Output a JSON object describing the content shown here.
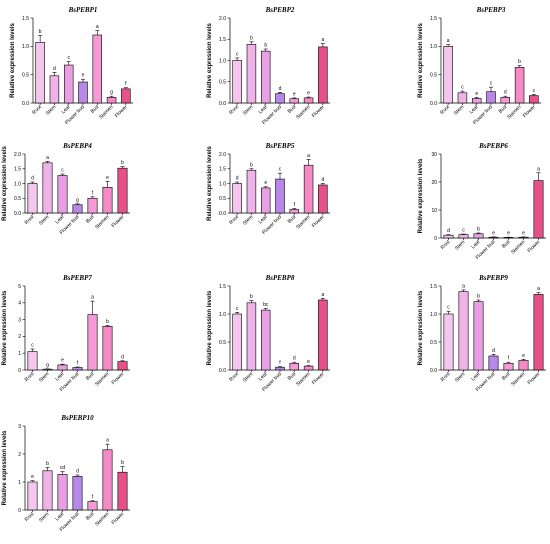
{
  "chart_data": [
    {
      "type": "bar",
      "title": "BsPEBP1",
      "ylabel": "Relative expression levels",
      "categories": [
        "Root",
        "Stem",
        "Leaf",
        "Flower bud",
        "Bud",
        "Stamen",
        "Flower"
      ],
      "values": [
        1.07,
        0.48,
        0.67,
        0.37,
        1.2,
        0.1,
        0.25
      ],
      "errors": [
        0.12,
        0.06,
        0.06,
        0.05,
        0.08,
        0.02,
        0.02
      ],
      "significance": [
        "b",
        "d",
        "c",
        "e",
        "a",
        "g",
        "f"
      ],
      "colors": [
        "#f4c6ee",
        "#f0b3e8",
        "#e9a0e2",
        "#b888e8",
        "#f59ad6",
        "#f58bc6",
        "#e8508a"
      ],
      "ylim": [
        0,
        1.5
      ],
      "yticks": [
        0.0,
        0.5,
        1.0,
        1.5
      ],
      "ytick_labels": [
        "0.0",
        "0.5",
        "1.0",
        "1.5"
      ]
    },
    {
      "type": "bar",
      "title": "BsPEBP2",
      "ylabel": "Relative expression levels",
      "categories": [
        "Root",
        "Stem",
        "Leaf",
        "Flower bud",
        "Bud",
        "Stamen",
        "Flower"
      ],
      "values": [
        1.0,
        1.38,
        1.22,
        0.22,
        0.1,
        0.12,
        1.32
      ],
      "errors": [
        0.06,
        0.06,
        0.05,
        0.03,
        0.02,
        0.02,
        0.08
      ],
      "significance": [
        "c",
        "b",
        "b",
        "d",
        "e",
        "e",
        "a"
      ],
      "colors": [
        "#f4c6ee",
        "#f0b3e8",
        "#e9a0e2",
        "#b888e8",
        "#f59ad6",
        "#f58bc6",
        "#e8508a"
      ],
      "ylim": [
        0,
        2.0
      ],
      "yticks": [
        0.0,
        0.5,
        1.0,
        1.5,
        2.0
      ],
      "ytick_labels": [
        "0.0",
        "0.5",
        "1.0",
        "1.5",
        "2.0"
      ]
    },
    {
      "type": "bar",
      "title": "BsPEBP3",
      "ylabel": "Relative expression levels",
      "categories": [
        "Root",
        "Stem",
        "Leaf",
        "Flower bud",
        "Bud",
        "Stamen",
        "Flower"
      ],
      "values": [
        1.0,
        0.18,
        0.08,
        0.2,
        0.1,
        0.63,
        0.13
      ],
      "errors": [
        0.03,
        0.03,
        0.02,
        0.08,
        0.02,
        0.03,
        0.02
      ],
      "significance": [
        "a",
        "c",
        "e",
        "c",
        "d",
        "b",
        "c"
      ],
      "colors": [
        "#f4c6ee",
        "#f0b3e8",
        "#e9a0e2",
        "#b888e8",
        "#f59ad6",
        "#f58bc6",
        "#e8508a"
      ],
      "ylim": [
        0,
        1.5
      ],
      "yticks": [
        0.0,
        0.5,
        1.0,
        1.5
      ],
      "ytick_labels": [
        "0.0",
        "0.5",
        "1.0",
        "1.5"
      ]
    },
    {
      "type": "bar",
      "title": "BsPEBP4",
      "ylabel": "Relative expression levels",
      "categories": [
        "Root",
        "Stem",
        "Leaf",
        "Flower bud",
        "Bud",
        "Stamen",
        "Flower"
      ],
      "values": [
        1.0,
        1.7,
        1.27,
        0.28,
        0.5,
        0.87,
        1.52
      ],
      "errors": [
        0.05,
        0.05,
        0.05,
        0.03,
        0.05,
        0.2,
        0.05
      ],
      "significance": [
        "d",
        "a",
        "c",
        "g",
        "f",
        "e",
        "b"
      ],
      "colors": [
        "#f4c6ee",
        "#f0b3e8",
        "#e9a0e2",
        "#b888e8",
        "#f59ad6",
        "#f58bc6",
        "#e8508a"
      ],
      "ylim": [
        0,
        2.0
      ],
      "yticks": [
        0.0,
        0.5,
        1.0,
        1.5,
        2.0
      ],
      "ytick_labels": [
        "0.0",
        "0.5",
        "1.0",
        "1.5",
        "2.0"
      ]
    },
    {
      "type": "bar",
      "title": "BsPEBP5",
      "ylabel": "Relative expression levels",
      "categories": [
        "Root",
        "Stem",
        "Leaf",
        "Flower bud",
        "Bud",
        "Stamen",
        "Flower"
      ],
      "values": [
        1.0,
        1.45,
        0.85,
        1.15,
        0.12,
        1.62,
        0.95
      ],
      "errors": [
        0.05,
        0.05,
        0.04,
        0.2,
        0.03,
        0.2,
        0.05
      ],
      "significance": [
        "d",
        "b",
        "e",
        "c",
        "f",
        "a",
        "d"
      ],
      "colors": [
        "#f4c6ee",
        "#f0b3e8",
        "#e9a0e2",
        "#b888e8",
        "#f59ad6",
        "#f58bc6",
        "#e8508a"
      ],
      "ylim": [
        0,
        2.0
      ],
      "yticks": [
        0.0,
        0.5,
        1.0,
        1.5,
        2.0
      ],
      "ytick_labels": [
        "0.0",
        "0.5",
        "1.0",
        "1.5",
        "2.0"
      ]
    },
    {
      "type": "bar",
      "title": "BsPEBP6",
      "ylabel": "Relative expression levels",
      "categories": [
        "Root",
        "Stem",
        "Leaf",
        "Flower bud",
        "Bud",
        "Stamen",
        "Flower"
      ],
      "values": [
        1.0,
        1.2,
        1.5,
        0.3,
        0.2,
        0.3,
        20.5
      ],
      "errors": [
        0.2,
        0.2,
        0.3,
        0.1,
        0.1,
        0.1,
        2.8
      ],
      "significance": [
        "d",
        "c",
        "b",
        "e",
        "e",
        "e",
        "a"
      ],
      "colors": [
        "#f4c6ee",
        "#f0b3e8",
        "#e9a0e2",
        "#b888e8",
        "#f59ad6",
        "#f58bc6",
        "#e8508a"
      ],
      "ylim": [
        0,
        30
      ],
      "yticks": [
        0,
        10,
        20,
        30
      ],
      "ytick_labels": [
        "0",
        "10",
        "20",
        "30"
      ]
    },
    {
      "type": "bar",
      "title": "BsPEBP7",
      "ylabel": "Relative expression levels",
      "categories": [
        "Root",
        "Stem",
        "Leaf",
        "Flower bud",
        "Bud",
        "Stamen",
        "Flower"
      ],
      "values": [
        1.1,
        0.05,
        0.3,
        0.15,
        3.3,
        2.6,
        0.5
      ],
      "errors": [
        0.15,
        0.02,
        0.05,
        0.03,
        0.8,
        0.05,
        0.05
      ],
      "significance": [
        "c",
        "g",
        "e",
        "f",
        "a",
        "b",
        "d"
      ],
      "colors": [
        "#f4c6ee",
        "#f0b3e8",
        "#e9a0e2",
        "#b888e8",
        "#f59ad6",
        "#f58bc6",
        "#e8508a"
      ],
      "ylim": [
        0,
        5
      ],
      "yticks": [
        0,
        1,
        2,
        3,
        4,
        5
      ],
      "ytick_labels": [
        "0",
        "1",
        "2",
        "3",
        "4",
        "5"
      ]
    },
    {
      "type": "bar",
      "title": "BsPEBP8",
      "ylabel": "Relative expression levels",
      "categories": [
        "Root",
        "Stem",
        "Leaf",
        "Flower bud",
        "Bud",
        "Stamen",
        "Flower"
      ],
      "values": [
        1.0,
        1.2,
        1.07,
        0.05,
        0.12,
        0.07,
        1.25
      ],
      "errors": [
        0.03,
        0.04,
        0.03,
        0.01,
        0.02,
        0.01,
        0.03
      ],
      "significance": [
        "c",
        "b",
        "bc",
        "f",
        "d",
        "e",
        "a"
      ],
      "colors": [
        "#f4c6ee",
        "#f0b3e8",
        "#e9a0e2",
        "#b888e8",
        "#f59ad6",
        "#f58bc6",
        "#e8508a"
      ],
      "ylim": [
        0,
        1.5
      ],
      "yticks": [
        0.0,
        0.5,
        1.0,
        1.5
      ],
      "ytick_labels": [
        "0.0",
        "0.5",
        "1.0",
        "1.5"
      ]
    },
    {
      "type": "bar",
      "title": "BsPEBP9",
      "ylabel": "Relative expression levels",
      "categories": [
        "Root",
        "Stem",
        "Leaf",
        "Flower bud",
        "Bud",
        "Stamen",
        "Flower"
      ],
      "values": [
        1.0,
        1.4,
        1.22,
        0.25,
        0.12,
        0.17,
        1.35
      ],
      "errors": [
        0.05,
        0.03,
        0.03,
        0.03,
        0.02,
        0.02,
        0.03
      ],
      "significance": [
        "c",
        "a",
        "b",
        "d",
        "f",
        "e",
        "a"
      ],
      "colors": [
        "#f4c6ee",
        "#f0b3e8",
        "#e9a0e2",
        "#b888e8",
        "#f59ad6",
        "#f58bc6",
        "#e8508a"
      ],
      "ylim": [
        0,
        1.5
      ],
      "yticks": [
        0.0,
        0.5,
        1.0,
        1.5
      ],
      "ytick_labels": [
        "0.0",
        "0.5",
        "1.0",
        "1.5"
      ]
    },
    {
      "type": "bar",
      "title": "BsPEBP10",
      "ylabel": "Relative expression levels",
      "categories": [
        "Root",
        "Stem",
        "Leaf",
        "Flower bud",
        "Bud",
        "Stamen",
        "Flower"
      ],
      "values": [
        1.0,
        1.4,
        1.27,
        1.2,
        0.3,
        2.15,
        1.35
      ],
      "errors": [
        0.05,
        0.12,
        0.1,
        0.05,
        0.03,
        0.2,
        0.2
      ],
      "significance": [
        "e",
        "b",
        "cd",
        "d",
        "f",
        "a",
        "b"
      ],
      "colors": [
        "#f4c6ee",
        "#f0b3e8",
        "#e9a0e2",
        "#b888e8",
        "#f59ad6",
        "#f58bc6",
        "#e8508a"
      ],
      "ylim": [
        0,
        3
      ],
      "yticks": [
        0,
        1,
        2,
        3
      ],
      "ytick_labels": [
        "0",
        "1",
        "2",
        "3"
      ]
    }
  ]
}
